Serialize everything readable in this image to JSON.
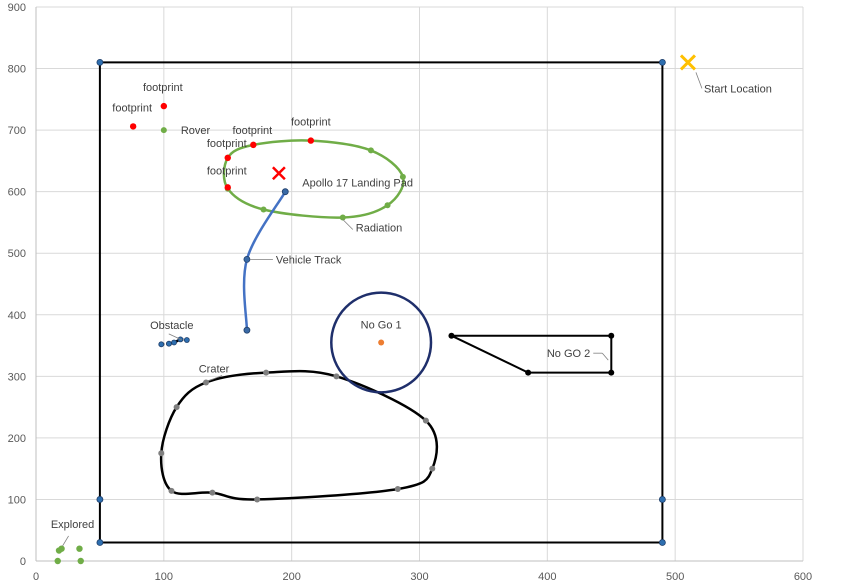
{
  "chart_data": {
    "type": "scatter",
    "title": "",
    "xlabel": "",
    "ylabel": "",
    "xlim": [
      0,
      600
    ],
    "ylim": [
      0,
      900
    ],
    "xticks": [
      "0",
      "100",
      "200",
      "300",
      "400",
      "500",
      "600"
    ],
    "yticks": [
      "0",
      "100",
      "200",
      "300",
      "400",
      "500",
      "600",
      "700",
      "800",
      "900"
    ],
    "grid": true,
    "colors": {
      "boundary": "#000000",
      "boundary_points": "#2e6fb0",
      "radiation": "#70ad47",
      "footprint": "#ff0000",
      "vehicle_track": "#4472c4",
      "no_go_1": "#1f2f6b",
      "no_go_1_center": "#ed7d31",
      "start": "#ffc000",
      "landing_pad": "#ff0000",
      "crater": "#000000",
      "explored": "#70ad47"
    },
    "series": [
      {
        "key": "boundary",
        "points": [
          [
            50,
            30
          ],
          [
            50,
            100
          ],
          [
            50,
            810
          ],
          [
            490,
            810
          ],
          [
            490,
            100
          ],
          [
            490,
            30
          ]
        ]
      },
      {
        "key": "radiation",
        "label": "Radiation",
        "label_point": [
          240,
          558
        ],
        "points": [
          [
            150,
            605
          ],
          [
            150,
            655
          ],
          [
            170,
            676
          ],
          [
            215,
            683
          ],
          [
            262,
            667
          ],
          [
            287,
            624
          ],
          [
            275,
            578
          ],
          [
            240,
            558
          ],
          [
            178,
            571
          ]
        ]
      },
      {
        "key": "vehicle_track",
        "label": "Vehicle Track",
        "label_point": [
          165,
          490
        ],
        "points": [
          [
            195,
            600
          ],
          [
            165,
            490
          ],
          [
            165,
            375
          ]
        ]
      },
      {
        "key": "crater",
        "label": "Crater",
        "label_point": [
          133,
          290
        ],
        "points": [
          [
            180,
            306
          ],
          [
            235,
            300
          ],
          [
            305,
            228
          ],
          [
            310,
            150
          ],
          [
            283,
            117
          ],
          [
            173,
            100
          ],
          [
            138,
            111
          ],
          [
            106,
            114
          ],
          [
            98,
            175
          ],
          [
            110,
            250
          ],
          [
            133,
            290
          ]
        ]
      },
      {
        "key": "no_go_2",
        "label": "No GO 2",
        "label_point": [
          450,
          336
        ],
        "points": [
          [
            325,
            366
          ],
          [
            450,
            366
          ],
          [
            450,
            306
          ],
          [
            385,
            306
          ],
          [
            325,
            366
          ]
        ]
      },
      {
        "key": "obstacle",
        "label": "Obstacle",
        "label_point": [
          107,
          356
        ],
        "points": [
          [
            98,
            352
          ],
          [
            104,
            353
          ],
          [
            108,
            355
          ],
          [
            113,
            360
          ],
          [
            118,
            359
          ]
        ]
      },
      {
        "key": "footprints",
        "points": [
          [
            76,
            706
          ],
          [
            100,
            739
          ],
          [
            150,
            655
          ],
          [
            170,
            676
          ],
          [
            215,
            683
          ],
          [
            150,
            607
          ]
        ],
        "labels": [
          "footprint",
          "footprint",
          "footprint",
          "footprint",
          "footprint",
          "footprint"
        ]
      },
      {
        "key": "rover",
        "label": "Rover",
        "points": [
          [
            100,
            700
          ]
        ]
      },
      {
        "key": "landing_pad",
        "label": "Apollo 17 Landing Pad",
        "points": [
          [
            195,
            600
          ]
        ],
        "marker_points": [
          [
            190,
            630
          ]
        ]
      },
      {
        "key": "start",
        "label": "Start Location",
        "points": [
          [
            510,
            810
          ]
        ]
      },
      {
        "key": "no_go_1",
        "label": "No Go 1",
        "center": [
          270,
          355
        ],
        "radius": 39
      },
      {
        "key": "explored",
        "label": "Explored",
        "label_point": [
          20,
          18
        ],
        "points": [
          [
            18,
            17
          ],
          [
            20,
            20
          ],
          [
            34,
            20
          ],
          [
            17,
            0
          ],
          [
            35,
            0
          ]
        ]
      }
    ]
  }
}
